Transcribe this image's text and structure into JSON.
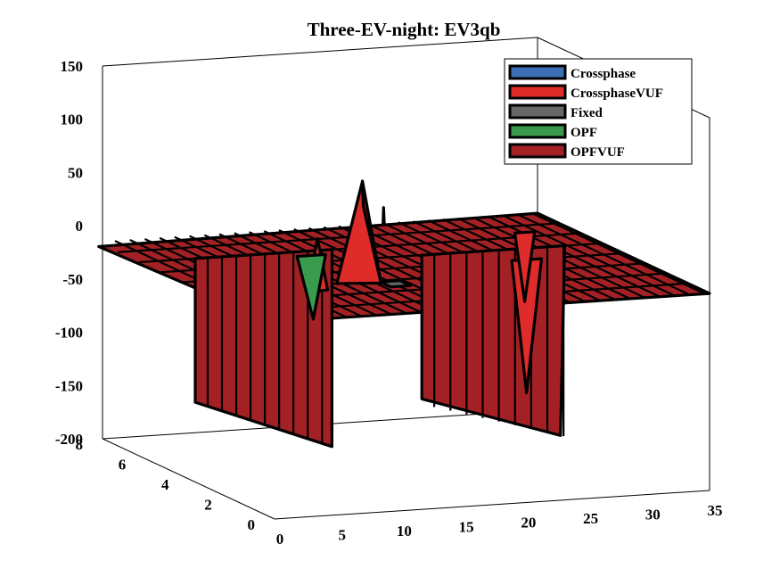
{
  "chart_data": {
    "type": "surface",
    "title": "Three-EV-night: EV3qb",
    "xlabel": "",
    "ylabel": "",
    "zlabel": "",
    "x_ticks": [
      0,
      5,
      10,
      15,
      20,
      25,
      30,
      35
    ],
    "y_ticks": [
      0,
      2,
      4,
      6,
      8
    ],
    "z_ticks": [
      150,
      100,
      50,
      0,
      -50,
      -100,
      -150,
      -200
    ],
    "xlim": [
      0,
      35
    ],
    "ylim": [
      0,
      8
    ],
    "zlim": [
      -200,
      150
    ],
    "grid": false,
    "legend_position": "top-right",
    "legend": [
      {
        "name": "Crossphase",
        "color": "#3d6fb6"
      },
      {
        "name": "CrossphaseVUF",
        "color": "#e02b2b"
      },
      {
        "name": "Fixed",
        "color": "#666666"
      },
      {
        "name": "OPF",
        "color": "#3a9a4e"
      },
      {
        "name": "OPFVUF",
        "color": "#a32125"
      }
    ],
    "series": [
      {
        "name": "OPFVUF",
        "color": "#a32125",
        "description_values": {
          "z_min": -200,
          "z_max": 75,
          "baseline": -15
        },
        "features": [
          {
            "x": 10.5,
            "y": 1.0,
            "z": 75
          },
          {
            "x": 11.0,
            "y": 3.0,
            "z": 60
          },
          {
            "x": 8.5,
            "y": 6.0,
            "z": -200
          },
          {
            "x": 2.0,
            "y": 6.0,
            "z": -150
          },
          {
            "x": 23.0,
            "y": 5.5,
            "z": -195
          },
          {
            "x": 29.0,
            "y": 7.5,
            "z": -190
          }
        ]
      },
      {
        "name": "CrossphaseVUF",
        "color": "#e02b2b",
        "features": [
          {
            "x": 11.5,
            "y": 2.5,
            "z": 85
          },
          {
            "x": 7.5,
            "y": 2.5,
            "z": 35
          },
          {
            "x": 27.0,
            "y": 4.0,
            "z": -140
          },
          {
            "x": 31.0,
            "y": 6.5,
            "z": -80
          }
        ]
      },
      {
        "name": "Crossphase",
        "color": "#3d6fb6",
        "features": [
          {
            "x": 17.0,
            "y": 0.5,
            "z": -15
          }
        ]
      },
      {
        "name": "Fixed",
        "color": "#666666",
        "features": [
          {
            "x": 5.0,
            "y": 1.5,
            "z": -15
          }
        ]
      },
      {
        "name": "OPF",
        "color": "#3a9a4e",
        "features": [
          {
            "x": 23.0,
            "y": 4.0,
            "z": -15
          },
          {
            "x": 13.0,
            "y": 5.5,
            "z": -75
          }
        ]
      }
    ]
  }
}
